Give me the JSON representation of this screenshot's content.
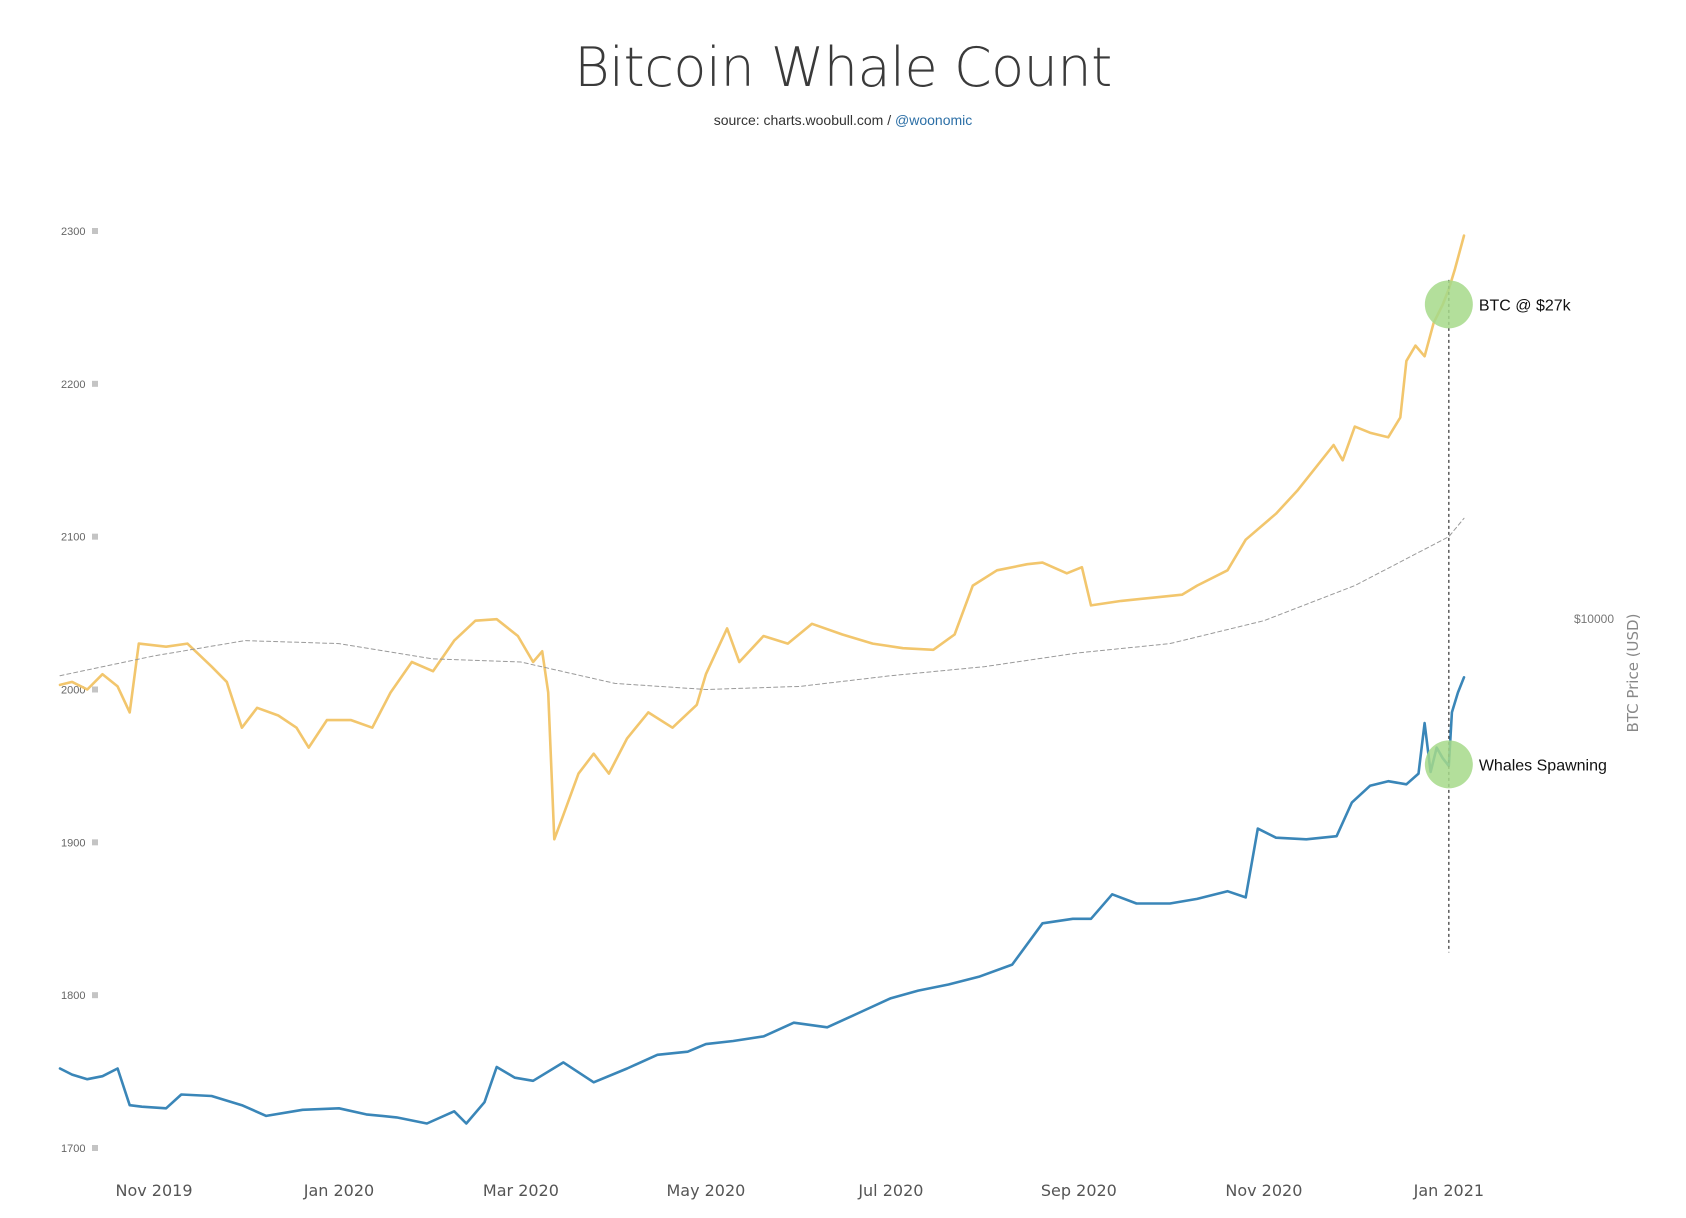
{
  "chart_data": {
    "type": "line",
    "title": "Bitcoin Whale Count",
    "subtitle_prefix": "source: charts.woobull.com / ",
    "subtitle_link": "@woonomic",
    "y_left": {
      "ticks": [
        "2300",
        "2200",
        "2100",
        "2000",
        "1900",
        "1800",
        "1700"
      ],
      "range": [
        1700,
        2300
      ]
    },
    "y_right": {
      "label": "BTC Price (USD)",
      "tick_label": "$10000"
    },
    "x_axis": {
      "ticks": [
        "Nov 2019",
        "Jan 2020",
        "Mar 2020",
        "May 2020",
        "Jul 2020",
        "Sep 2020",
        "Nov 2020",
        "Jan 2021"
      ],
      "tick_dates": [
        "2019-11-01",
        "2020-01-01",
        "2020-03-01",
        "2020-05-01",
        "2020-07-01",
        "2020-09-01",
        "2020-11-01",
        "2021-01-01"
      ],
      "range": [
        "2019-10-01",
        "2021-01-06"
      ]
    },
    "series": [
      {
        "name": "",
        "color": "#3a86b8",
        "points": [
          [
            "2019-10-01",
            1752
          ],
          [
            "2019-10-05",
            1748
          ],
          [
            "2019-10-10",
            1745
          ],
          [
            "2019-10-15",
            1747
          ],
          [
            "2019-10-20",
            1752
          ],
          [
            "2019-10-24",
            1728
          ],
          [
            "2019-10-28",
            1727
          ],
          [
            "2019-11-05",
            1726
          ],
          [
            "2019-11-10",
            1735
          ],
          [
            "2019-11-20",
            1734
          ],
          [
            "2019-11-30",
            1728
          ],
          [
            "2019-12-08",
            1721
          ],
          [
            "2019-12-20",
            1725
          ],
          [
            "2020-01-01",
            1726
          ],
          [
            "2020-01-10",
            1722
          ],
          [
            "2020-01-20",
            1720
          ],
          [
            "2020-01-30",
            1716
          ],
          [
            "2020-02-08",
            1724
          ],
          [
            "2020-02-12",
            1716
          ],
          [
            "2020-02-18",
            1730
          ],
          [
            "2020-02-22",
            1753
          ],
          [
            "2020-02-28",
            1746
          ],
          [
            "2020-03-05",
            1744
          ],
          [
            "2020-03-15",
            1756
          ],
          [
            "2020-03-25",
            1743
          ],
          [
            "2020-04-05",
            1752
          ],
          [
            "2020-04-15",
            1761
          ],
          [
            "2020-04-25",
            1763
          ],
          [
            "2020-05-01",
            1768
          ],
          [
            "2020-05-10",
            1770
          ],
          [
            "2020-05-20",
            1773
          ],
          [
            "2020-05-30",
            1782
          ],
          [
            "2020-06-10",
            1779
          ],
          [
            "2020-06-20",
            1788
          ],
          [
            "2020-07-01",
            1798
          ],
          [
            "2020-07-10",
            1803
          ],
          [
            "2020-07-20",
            1807
          ],
          [
            "2020-07-30",
            1812
          ],
          [
            "2020-08-10",
            1820
          ],
          [
            "2020-08-20",
            1847
          ],
          [
            "2020-08-30",
            1850
          ],
          [
            "2020-09-05",
            1850
          ],
          [
            "2020-09-12",
            1866
          ],
          [
            "2020-09-20",
            1860
          ],
          [
            "2020-10-01",
            1860
          ],
          [
            "2020-10-10",
            1863
          ],
          [
            "2020-10-20",
            1868
          ],
          [
            "2020-10-26",
            1864
          ],
          [
            "2020-10-30",
            1909
          ],
          [
            "2020-11-05",
            1903
          ],
          [
            "2020-11-15",
            1902
          ],
          [
            "2020-11-25",
            1904
          ],
          [
            "2020-11-30",
            1926
          ],
          [
            "2020-12-06",
            1937
          ],
          [
            "2020-12-12",
            1940
          ],
          [
            "2020-12-18",
            1938
          ],
          [
            "2020-12-22",
            1945
          ],
          [
            "2020-12-24",
            1978
          ],
          [
            "2020-12-26",
            1946
          ],
          [
            "2020-12-28",
            1962
          ],
          [
            "2020-12-30",
            1955
          ],
          [
            "2021-01-01",
            1950
          ],
          [
            "2021-01-02",
            1985
          ],
          [
            "2021-01-04",
            1998
          ],
          [
            "2021-01-06",
            2008
          ]
        ]
      },
      {
        "name": "",
        "color": "#f2c66d",
        "points": [
          [
            "2019-10-01",
            2003
          ],
          [
            "2019-10-05",
            2005
          ],
          [
            "2019-10-10",
            2000
          ],
          [
            "2019-10-15",
            2010
          ],
          [
            "2019-10-20",
            2002
          ],
          [
            "2019-10-24",
            1985
          ],
          [
            "2019-10-27",
            2030
          ],
          [
            "2019-11-05",
            2028
          ],
          [
            "2019-11-12",
            2030
          ],
          [
            "2019-11-20",
            2015
          ],
          [
            "2019-11-25",
            2005
          ],
          [
            "2019-11-30",
            1975
          ],
          [
            "2019-12-05",
            1988
          ],
          [
            "2019-12-12",
            1983
          ],
          [
            "2019-12-18",
            1975
          ],
          [
            "2019-12-22",
            1962
          ],
          [
            "2019-12-28",
            1980
          ],
          [
            "2020-01-05",
            1980
          ],
          [
            "2020-01-12",
            1975
          ],
          [
            "2020-01-18",
            1998
          ],
          [
            "2020-01-25",
            2018
          ],
          [
            "2020-02-01",
            2012
          ],
          [
            "2020-02-08",
            2032
          ],
          [
            "2020-02-15",
            2045
          ],
          [
            "2020-02-22",
            2046
          ],
          [
            "2020-02-29",
            2035
          ],
          [
            "2020-03-05",
            2018
          ],
          [
            "2020-03-08",
            2025
          ],
          [
            "2020-03-10",
            1998
          ],
          [
            "2020-03-12",
            1902
          ],
          [
            "2020-03-15",
            1918
          ],
          [
            "2020-03-20",
            1945
          ],
          [
            "2020-03-25",
            1958
          ],
          [
            "2020-03-30",
            1945
          ],
          [
            "2020-04-05",
            1968
          ],
          [
            "2020-04-12",
            1985
          ],
          [
            "2020-04-20",
            1975
          ],
          [
            "2020-04-28",
            1990
          ],
          [
            "2020-05-01",
            2010
          ],
          [
            "2020-05-08",
            2040
          ],
          [
            "2020-05-12",
            2018
          ],
          [
            "2020-05-20",
            2035
          ],
          [
            "2020-05-28",
            2030
          ],
          [
            "2020-06-05",
            2043
          ],
          [
            "2020-06-15",
            2036
          ],
          [
            "2020-06-25",
            2030
          ],
          [
            "2020-07-05",
            2027
          ],
          [
            "2020-07-15",
            2026
          ],
          [
            "2020-07-22",
            2036
          ],
          [
            "2020-07-28",
            2068
          ],
          [
            "2020-08-05",
            2078
          ],
          [
            "2020-08-15",
            2082
          ],
          [
            "2020-08-20",
            2083
          ],
          [
            "2020-08-28",
            2076
          ],
          [
            "2020-09-02",
            2080
          ],
          [
            "2020-09-05",
            2055
          ],
          [
            "2020-09-15",
            2058
          ],
          [
            "2020-09-25",
            2060
          ],
          [
            "2020-10-05",
            2062
          ],
          [
            "2020-10-10",
            2068
          ],
          [
            "2020-10-20",
            2078
          ],
          [
            "2020-10-26",
            2098
          ],
          [
            "2020-11-05",
            2115
          ],
          [
            "2020-11-12",
            2130
          ],
          [
            "2020-11-18",
            2145
          ],
          [
            "2020-11-24",
            2160
          ],
          [
            "2020-11-27",
            2150
          ],
          [
            "2020-12-01",
            2172
          ],
          [
            "2020-12-06",
            2168
          ],
          [
            "2020-12-12",
            2165
          ],
          [
            "2020-12-16",
            2178
          ],
          [
            "2020-12-18",
            2215
          ],
          [
            "2020-12-21",
            2225
          ],
          [
            "2020-12-24",
            2218
          ],
          [
            "2020-12-27",
            2240
          ],
          [
            "2020-12-30",
            2252
          ],
          [
            "2021-01-01",
            2262
          ],
          [
            "2021-01-03",
            2275
          ],
          [
            "2021-01-06",
            2297
          ]
        ]
      },
      {
        "name": "",
        "color": "#9a9a9a",
        "dashed": true,
        "points": [
          [
            "2019-10-01",
            2009
          ],
          [
            "2019-11-01",
            2022
          ],
          [
            "2019-12-01",
            2032
          ],
          [
            "2020-01-01",
            2030
          ],
          [
            "2020-02-01",
            2020
          ],
          [
            "2020-03-01",
            2018
          ],
          [
            "2020-04-01",
            2004
          ],
          [
            "2020-05-01",
            2000
          ],
          [
            "2020-06-01",
            2002
          ],
          [
            "2020-07-01",
            2009
          ],
          [
            "2020-08-01",
            2015
          ],
          [
            "2020-09-01",
            2024
          ],
          [
            "2020-10-01",
            2030
          ],
          [
            "2020-11-01",
            2045
          ],
          [
            "2020-12-01",
            2068
          ],
          [
            "2021-01-01",
            2100
          ],
          [
            "2021-01-06",
            2112
          ]
        ]
      }
    ],
    "annotations": [
      {
        "text": "BTC @ $27k",
        "date": "2021-01-01",
        "value": 2252
      },
      {
        "text": "Whales Spawning",
        "date": "2021-01-01",
        "value": 1951
      }
    ],
    "marker_line": {
      "date": "2021-01-01",
      "range": [
        1828,
        2268
      ]
    },
    "colors": {
      "marker": "#a6d98a",
      "grid_tick": "#c4c4c4",
      "axis_text": "#555555"
    },
    "grid": false,
    "legend": "none"
  }
}
